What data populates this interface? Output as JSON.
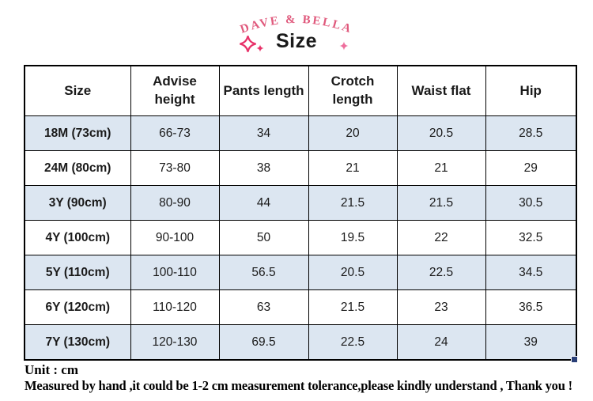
{
  "brand": {
    "name": "DAVE & BELLA",
    "color": "#e05a7d"
  },
  "page_title": "Size",
  "icons": {
    "sparkle_large_outline": {
      "name": "sparkle-outline-icon",
      "color": "#e8336a"
    },
    "sparkle_small_filled": {
      "name": "sparkle-filled-icon",
      "color": "#e8336a"
    },
    "sparkle_right_filled": {
      "name": "sparkle-filled-icon",
      "color": "#ee6f9d"
    }
  },
  "table": {
    "row_highlight_color": "#dce6f1",
    "headers": [
      "Size",
      "Advise height",
      "Pants length",
      "Crotch length",
      "Waist flat",
      "Hip"
    ],
    "rows": [
      {
        "size": "18M (73cm)",
        "values": [
          "66-73",
          "34",
          "20",
          "20.5",
          "28.5"
        ]
      },
      {
        "size": "24M (80cm)",
        "values": [
          "73-80",
          "38",
          "21",
          "21",
          "29"
        ]
      },
      {
        "size": "3Y (90cm)",
        "values": [
          "80-90",
          "44",
          "21.5",
          "21.5",
          "30.5"
        ]
      },
      {
        "size": "4Y (100cm)",
        "values": [
          "90-100",
          "50",
          "19.5",
          "22",
          "32.5"
        ]
      },
      {
        "size": "5Y (110cm)",
        "values": [
          "100-110",
          "56.5",
          "20.5",
          "22.5",
          "34.5"
        ]
      },
      {
        "size": "6Y (120cm)",
        "values": [
          "110-120",
          "63",
          "21.5",
          "23",
          "36.5"
        ]
      },
      {
        "size": "7Y (130cm)",
        "values": [
          "120-130",
          "69.5",
          "22.5",
          "24",
          "39"
        ]
      }
    ]
  },
  "footer": {
    "unit": "Unit : cm",
    "note": "Measured by hand ,it could be 1-2 cm measurement tolerance,please kindly understand , Thank you !"
  }
}
